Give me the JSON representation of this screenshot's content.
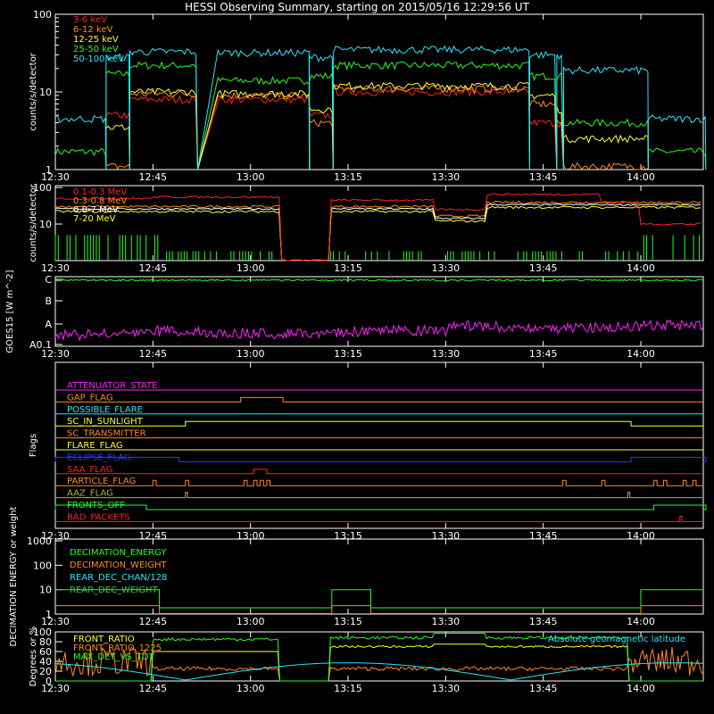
{
  "title": "HESSI Observing Summary, starting on 2015/05/16 12:29:56 UT",
  "time_ticks": [
    "12:30",
    "12:45",
    "13:00",
    "13:15",
    "13:30",
    "13:45",
    "14:00"
  ],
  "colors": {
    "red": "#ff2020",
    "orange": "#ff8a1a",
    "yellow": "#ffff30",
    "green": "#20ff20",
    "cyan": "#20e8ff",
    "magenta": "#ff20ff",
    "blue": "#2040ff",
    "white": "#ffffff",
    "dkgreen": "#40c040",
    "olive": "#b0b040",
    "pink": "#ff6070"
  },
  "chart_data": [
    {
      "type": "line",
      "ylabel": "counts/s/detector",
      "ylim": [
        1,
        100
      ],
      "yscale": "log",
      "yticks": [
        "1",
        "10",
        "100"
      ],
      "series": [
        {
          "name": "3-6 keV",
          "color": "red"
        },
        {
          "name": "6-12 keV",
          "color": "orange"
        },
        {
          "name": "12-25 keV",
          "color": "yellow"
        },
        {
          "name": "25-50 keV",
          "color": "green"
        },
        {
          "name": "50-100 keV",
          "color": "cyan"
        }
      ]
    },
    {
      "type": "line",
      "ylabel": "counts/s/detector",
      "ylim": [
        1,
        100
      ],
      "yscale": "log",
      "yticks": [
        "10",
        "100"
      ],
      "series": [
        {
          "name": "0.1-0.3 MeV",
          "color": "red"
        },
        {
          "name": "0.3-0.8 MeV",
          "color": "orange"
        },
        {
          "name": "0.8-7 MeV",
          "color": "white"
        },
        {
          "name": "7-20 MeV",
          "color": "yellow"
        }
      ]
    },
    {
      "type": "line",
      "ylabel": "GOES15 [W m^-2]",
      "yticks": [
        "A0.1",
        "A",
        "B",
        "C"
      ],
      "series": [
        {
          "name": "GOES",
          "color": "magenta"
        }
      ]
    },
    {
      "type": "line",
      "ylabel": "Flags",
      "series": [
        {
          "name": "ATTENUATOR_STATE",
          "color": "magenta"
        },
        {
          "name": "GAP_FLAG",
          "color": "orange"
        },
        {
          "name": "POSSIBLE_FLARE",
          "color": "cyan"
        },
        {
          "name": "SC_IN_SUNLIGHT",
          "color": "yellow"
        },
        {
          "name": "SC_TRANSMITTER",
          "color": "orange"
        },
        {
          "name": "FLARE_FLAG",
          "color": "yellow"
        },
        {
          "name": "ECLIPSE_FLAG",
          "color": "blue"
        },
        {
          "name": "SAA_FLAG",
          "color": "red"
        },
        {
          "name": "PARTICLE_FLAG",
          "color": "orange"
        },
        {
          "name": "AAZ_FLAG",
          "color": "olive"
        },
        {
          "name": "FRONTS_OFF",
          "color": "green"
        },
        {
          "name": "BAD_PACKETS",
          "color": "red"
        }
      ]
    },
    {
      "type": "line",
      "ylabel": "DECIMATION ENERGY or weight",
      "ylim": [
        1,
        1000
      ],
      "yscale": "log",
      "yticks": [
        "1",
        "10",
        "100",
        "1000"
      ],
      "series": [
        {
          "name": "DECIMATION_ENERGY",
          "color": "green"
        },
        {
          "name": "DECIMATION_WEIGHT",
          "color": "orange"
        },
        {
          "name": "REAR_DEC_CHAN/128",
          "color": "cyan"
        },
        {
          "name": "REAR_DEC_WEIGHT",
          "color": "dkgreen"
        }
      ]
    },
    {
      "type": "line",
      "ylabel": "Degrees or %",
      "ylim": [
        0,
        100
      ],
      "yticks": [
        "0",
        "20",
        "40",
        "60",
        "80",
        "100"
      ],
      "annotation": "Absolute geomagnetic latitude",
      "series": [
        {
          "name": "FRONT_RATIO",
          "color": "yellow"
        },
        {
          "name": "FRONT_RATIO_1225",
          "color": "orange"
        },
        {
          "name": "MAX_DET_VS_TOT",
          "color": "green"
        }
      ]
    }
  ]
}
